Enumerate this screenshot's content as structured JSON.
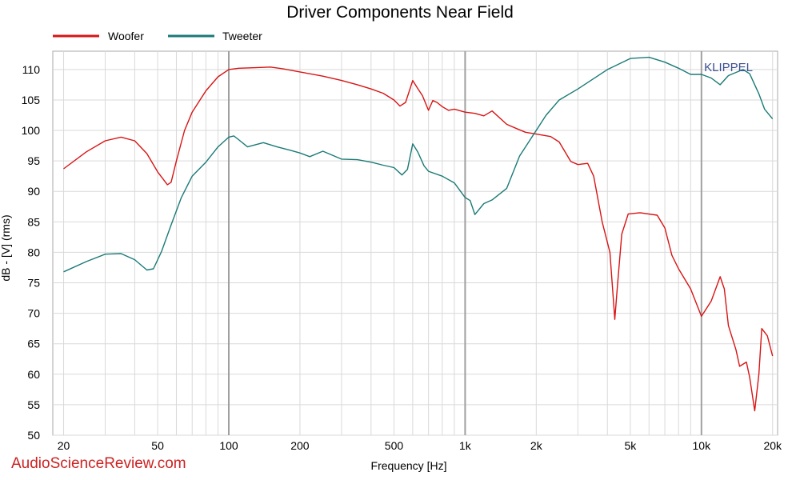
{
  "chart_data": {
    "type": "line",
    "title": "Driver Components Near Field",
    "xlabel": "Frequency [Hz]",
    "ylabel": "dB - [V] (rms)",
    "x_scale": "log",
    "xlim": [
      18,
      21000
    ],
    "ylim": [
      50,
      113
    ],
    "x_ticks": [
      {
        "value": 20,
        "label": "20"
      },
      {
        "value": 50,
        "label": "50"
      },
      {
        "value": 100,
        "label": "100"
      },
      {
        "value": 200,
        "label": "200"
      },
      {
        "value": 500,
        "label": "500"
      },
      {
        "value": 1000,
        "label": "1k"
      },
      {
        "value": 2000,
        "label": "2k"
      },
      {
        "value": 5000,
        "label": "5k"
      },
      {
        "value": 10000,
        "label": "10k"
      },
      {
        "value": 20000,
        "label": "20k"
      }
    ],
    "y_ticks": [
      50,
      55,
      60,
      65,
      70,
      75,
      80,
      85,
      90,
      95,
      100,
      105,
      110
    ],
    "grid": true,
    "legend_position": "top-left",
    "series": [
      {
        "name": "Woofer",
        "color": "#d81414",
        "points": [
          [
            20,
            93.7
          ],
          [
            25,
            96.5
          ],
          [
            30,
            98.3
          ],
          [
            35,
            98.9
          ],
          [
            40,
            98.3
          ],
          [
            45,
            96.2
          ],
          [
            50,
            93.2
          ],
          [
            55,
            91.1
          ],
          [
            57,
            91.5
          ],
          [
            60,
            95
          ],
          [
            65,
            100
          ],
          [
            70,
            103
          ],
          [
            80,
            106.5
          ],
          [
            90,
            108.8
          ],
          [
            100,
            110
          ],
          [
            110,
            110.2
          ],
          [
            130,
            110.3
          ],
          [
            150,
            110.4
          ],
          [
            170,
            110.1
          ],
          [
            200,
            109.6
          ],
          [
            250,
            108.9
          ],
          [
            300,
            108.2
          ],
          [
            350,
            107.5
          ],
          [
            400,
            106.8
          ],
          [
            450,
            106.1
          ],
          [
            500,
            105
          ],
          [
            530,
            104
          ],
          [
            560,
            104.6
          ],
          [
            600,
            108.2
          ],
          [
            630,
            106.9
          ],
          [
            660,
            105.7
          ],
          [
            700,
            103.3
          ],
          [
            730,
            104.9
          ],
          [
            760,
            104.6
          ],
          [
            800,
            103.9
          ],
          [
            850,
            103.3
          ],
          [
            900,
            103.5
          ],
          [
            1000,
            103
          ],
          [
            1100,
            102.8
          ],
          [
            1200,
            102.4
          ],
          [
            1300,
            103.2
          ],
          [
            1500,
            101
          ],
          [
            1700,
            100.1
          ],
          [
            1800,
            99.7
          ],
          [
            2000,
            99.4
          ],
          [
            2300,
            99
          ],
          [
            2500,
            98.1
          ],
          [
            2800,
            94.9
          ],
          [
            3000,
            94.4
          ],
          [
            3300,
            94.6
          ],
          [
            3500,
            92.5
          ],
          [
            3800,
            85
          ],
          [
            4100,
            80
          ],
          [
            4300,
            69
          ],
          [
            4400,
            74
          ],
          [
            4600,
            83
          ],
          [
            4900,
            86.3
          ],
          [
            5500,
            86.5
          ],
          [
            6500,
            86.1
          ],
          [
            7000,
            84
          ],
          [
            7500,
            79.5
          ],
          [
            8000,
            77.3
          ],
          [
            9000,
            74
          ],
          [
            10000,
            69.5
          ],
          [
            11000,
            72
          ],
          [
            12000,
            76
          ],
          [
            12500,
            74
          ],
          [
            13000,
            68
          ],
          [
            14000,
            64
          ],
          [
            14500,
            61.3
          ],
          [
            15500,
            62
          ],
          [
            16000,
            59.5
          ],
          [
            16800,
            54
          ],
          [
            17500,
            60
          ],
          [
            18000,
            67.5
          ],
          [
            19000,
            66.3
          ],
          [
            20000,
            63
          ]
        ]
      },
      {
        "name": "Tweeter",
        "color": "#1a7a76",
        "points": [
          [
            20,
            76.8
          ],
          [
            25,
            78.5
          ],
          [
            30,
            79.7
          ],
          [
            35,
            79.8
          ],
          [
            40,
            78.8
          ],
          [
            45,
            77.1
          ],
          [
            48,
            77.3
          ],
          [
            52,
            80.2
          ],
          [
            57,
            84.5
          ],
          [
            63,
            89
          ],
          [
            70,
            92.5
          ],
          [
            80,
            94.8
          ],
          [
            90,
            97.3
          ],
          [
            100,
            98.9
          ],
          [
            105,
            99.1
          ],
          [
            110,
            98.5
          ],
          [
            120,
            97.3
          ],
          [
            140,
            98
          ],
          [
            160,
            97.3
          ],
          [
            180,
            96.8
          ],
          [
            200,
            96.3
          ],
          [
            220,
            95.7
          ],
          [
            250,
            96.6
          ],
          [
            300,
            95.3
          ],
          [
            350,
            95.2
          ],
          [
            400,
            94.8
          ],
          [
            450,
            94.3
          ],
          [
            500,
            93.9
          ],
          [
            540,
            92.7
          ],
          [
            570,
            93.6
          ],
          [
            600,
            97.8
          ],
          [
            630,
            96.5
          ],
          [
            670,
            94.2
          ],
          [
            700,
            93.3
          ],
          [
            800,
            92.5
          ],
          [
            900,
            91.4
          ],
          [
            1000,
            89
          ],
          [
            1050,
            88.5
          ],
          [
            1100,
            86.2
          ],
          [
            1200,
            88
          ],
          [
            1300,
            88.6
          ],
          [
            1500,
            90.5
          ],
          [
            1700,
            95.8
          ],
          [
            2000,
            100
          ],
          [
            2200,
            102.5
          ],
          [
            2500,
            105
          ],
          [
            3000,
            106.8
          ],
          [
            4000,
            110
          ],
          [
            5000,
            111.8
          ],
          [
            6000,
            112
          ],
          [
            7000,
            111.2
          ],
          [
            8000,
            110.2
          ],
          [
            9000,
            109.2
          ],
          [
            10000,
            109.2
          ],
          [
            11000,
            108.6
          ],
          [
            12000,
            107.5
          ],
          [
            13000,
            109
          ],
          [
            15000,
            110
          ],
          [
            16000,
            109.3
          ],
          [
            17500,
            106
          ],
          [
            18500,
            103.5
          ],
          [
            20000,
            101.9
          ]
        ]
      }
    ]
  },
  "brand": "KLIPPEL",
  "watermark": "AudioScienceReview.com"
}
